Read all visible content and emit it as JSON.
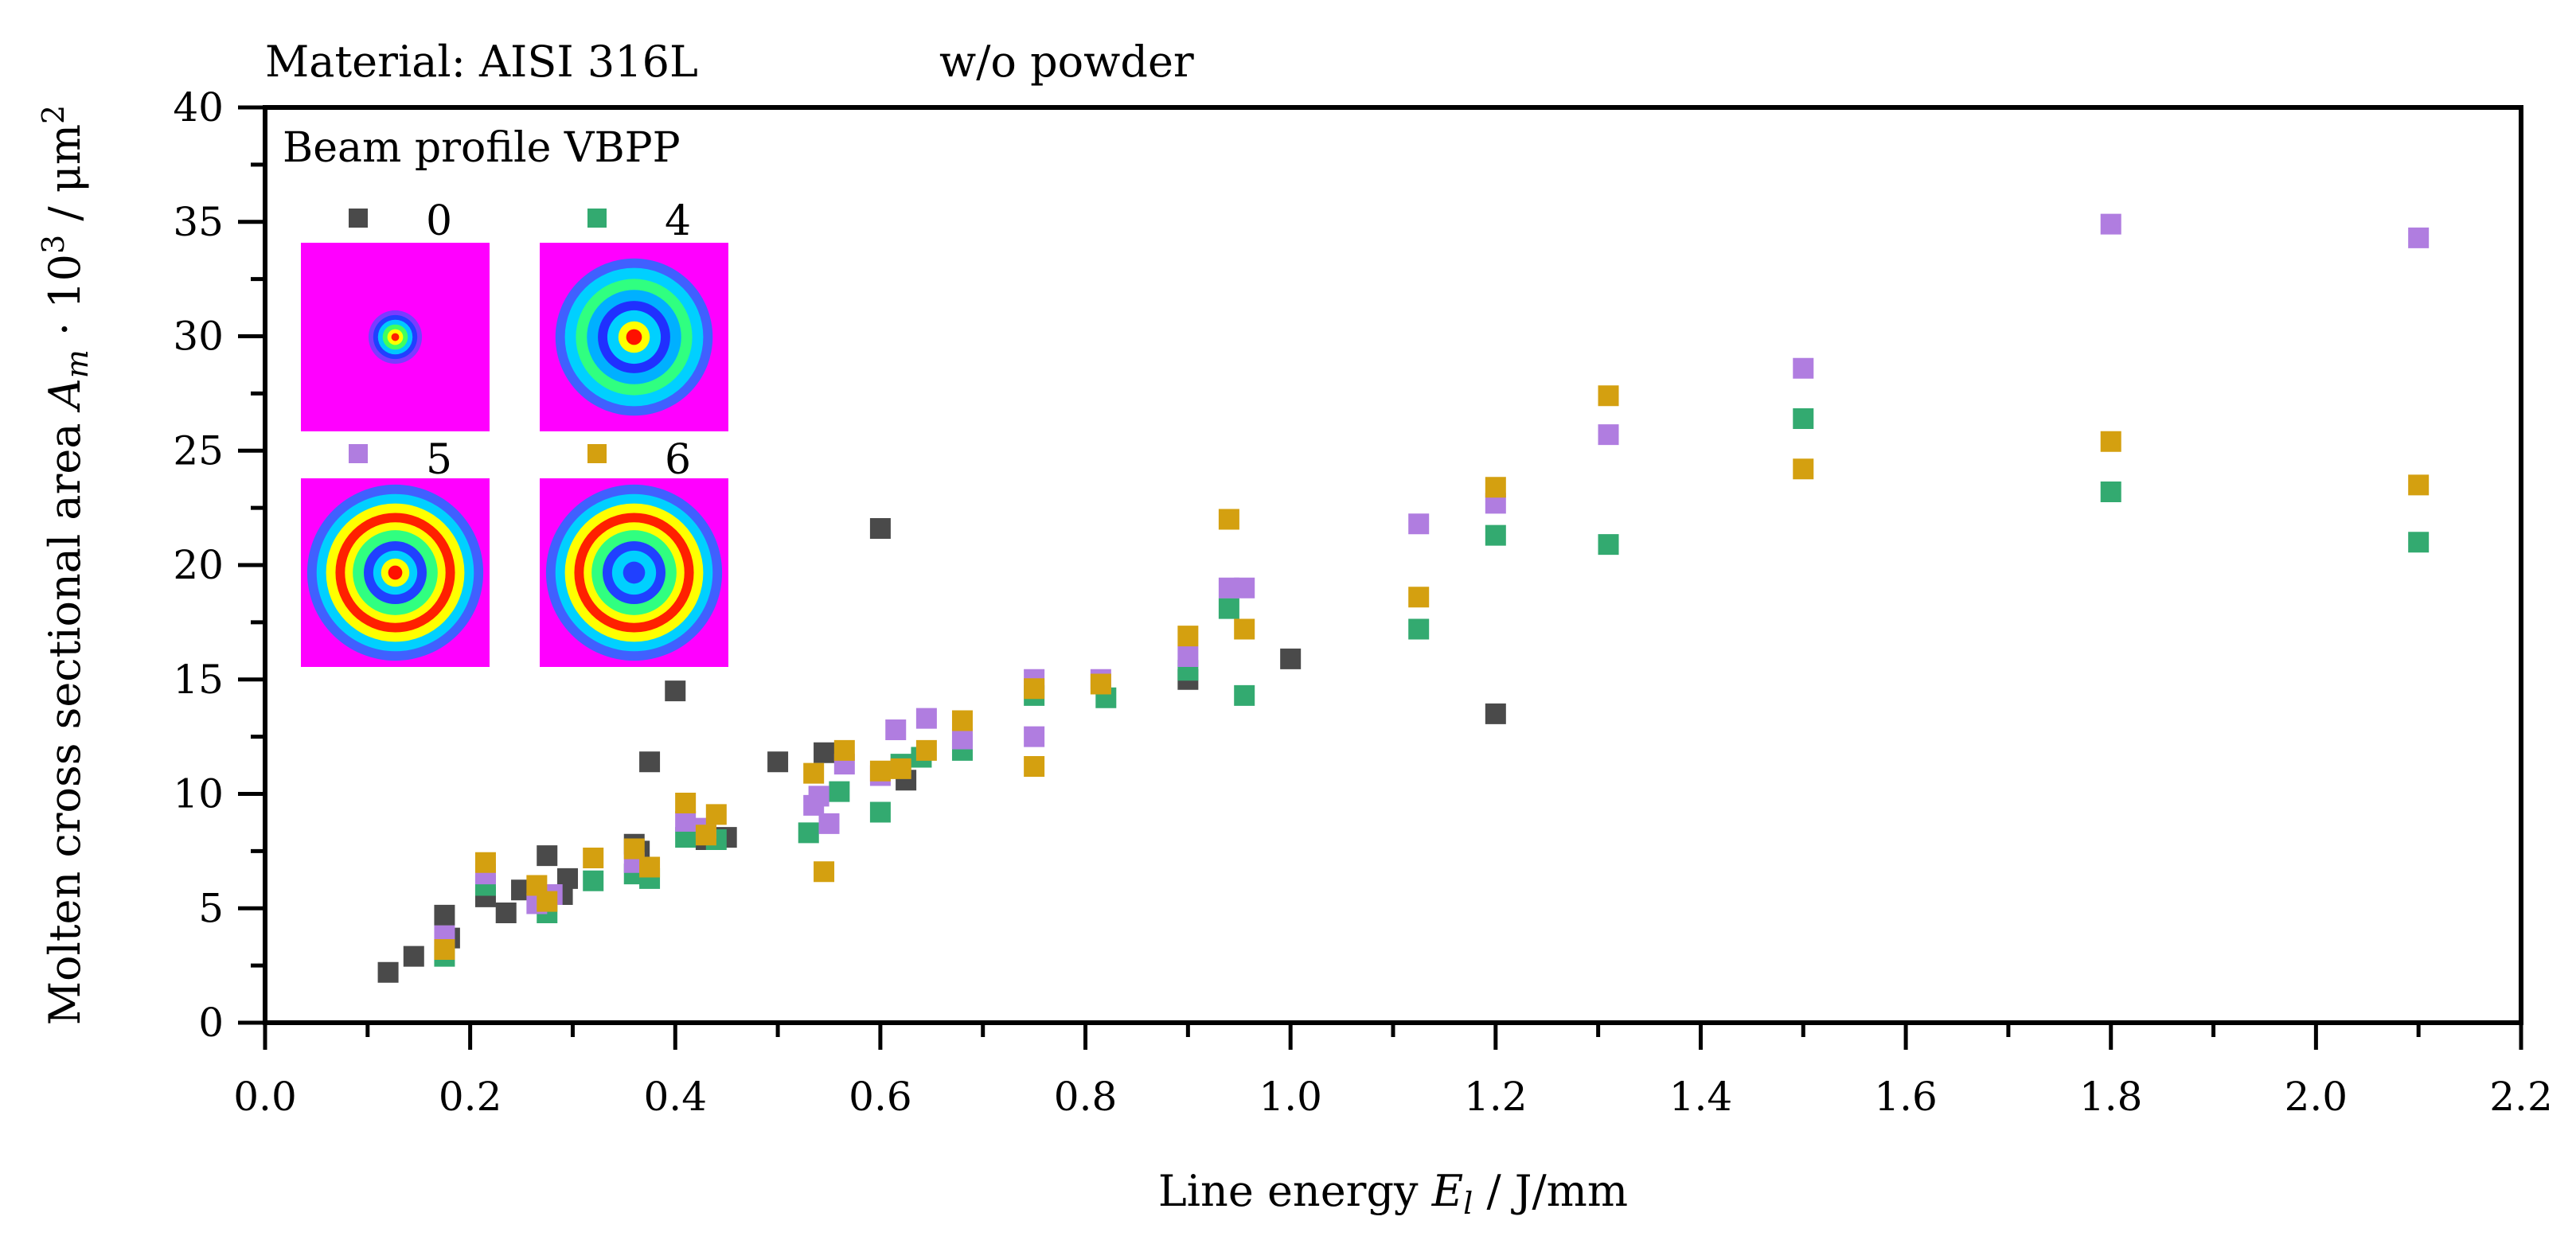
{
  "chart_data": {
    "type": "scatter",
    "header_left": "Material: AISI 316L",
    "header_right": "w/o powder",
    "xlabel_prefix": "Line energy ",
    "xlabel_var": "E",
    "xlabel_sub": "l",
    "xlabel_suffix": " / J/mm",
    "ylabel_prefix": "Molten cross sectional area ",
    "ylabel_var": "A",
    "ylabel_sub": "m",
    "ylabel_mid": " · 10",
    "ylabel_sup": "3",
    "ylabel_unit": " / μm",
    "ylabel_unit_sup": "2",
    "xlim": [
      0.0,
      2.2
    ],
    "ylim": [
      0,
      40
    ],
    "xticks": [
      "0.0",
      "0.2",
      "0.4",
      "0.6",
      "0.8",
      "1.0",
      "1.2",
      "1.4",
      "1.6",
      "1.8",
      "2.0",
      "2.2"
    ],
    "yticks": [
      "0",
      "5",
      "10",
      "15",
      "20",
      "25",
      "30",
      "35",
      "40"
    ],
    "legend_title": "Beam profile VBPP",
    "series": [
      {
        "name": "0",
        "color": "#4a4a4a",
        "x": [
          0.12,
          0.145,
          0.175,
          0.18,
          0.215,
          0.235,
          0.25,
          0.275,
          0.29,
          0.295,
          0.36,
          0.365,
          0.375,
          0.4,
          0.43,
          0.45,
          0.5,
          0.545,
          0.6,
          0.625,
          0.9,
          1.0,
          1.2
        ],
        "y": [
          2.2,
          2.9,
          4.7,
          3.7,
          5.5,
          4.8,
          5.8,
          7.3,
          5.6,
          6.3,
          7.8,
          7.5,
          11.4,
          14.5,
          8.0,
          8.1,
          11.4,
          11.8,
          21.6,
          10.6,
          15.0,
          15.9,
          13.5
        ]
      },
      {
        "name": "4",
        "color": "#33aa70",
        "x": [
          0.175,
          0.215,
          0.275,
          0.32,
          0.36,
          0.375,
          0.41,
          0.44,
          0.53,
          0.56,
          0.6,
          0.62,
          0.64,
          0.68,
          0.75,
          0.82,
          0.9,
          0.94,
          0.955,
          1.125,
          1.2,
          1.31,
          1.5,
          1.8,
          2.1
        ],
        "y": [
          2.9,
          6.0,
          4.8,
          6.2,
          6.5,
          6.3,
          8.1,
          8.0,
          8.3,
          10.1,
          9.2,
          11.3,
          11.6,
          11.9,
          14.3,
          14.2,
          15.4,
          18.1,
          14.3,
          17.2,
          21.3,
          20.9,
          26.4,
          23.2,
          21.0
        ]
      },
      {
        "name": "5",
        "color": "#b07de0",
        "x": [
          0.175,
          0.215,
          0.265,
          0.28,
          0.36,
          0.41,
          0.43,
          0.535,
          0.54,
          0.55,
          0.565,
          0.6,
          0.615,
          0.645,
          0.68,
          0.75,
          0.75,
          0.815,
          0.9,
          0.94,
          0.955,
          1.125,
          1.2,
          1.31,
          1.5,
          1.8,
          2.1
        ],
        "y": [
          3.8,
          6.5,
          5.2,
          5.6,
          7.0,
          8.8,
          8.5,
          9.5,
          9.9,
          8.7,
          11.3,
          10.8,
          12.8,
          13.3,
          12.4,
          15.0,
          12.5,
          15.0,
          16.0,
          19.0,
          19.0,
          21.8,
          22.7,
          25.7,
          28.6,
          34.9,
          34.3
        ]
      },
      {
        "name": "6",
        "color": "#d4a010",
        "x": [
          0.175,
          0.215,
          0.265,
          0.275,
          0.32,
          0.36,
          0.375,
          0.41,
          0.43,
          0.44,
          0.535,
          0.545,
          0.565,
          0.6,
          0.62,
          0.645,
          0.68,
          0.75,
          0.75,
          0.815,
          0.9,
          0.94,
          0.955,
          1.125,
          1.2,
          1.31,
          1.5,
          1.8,
          2.1
        ],
        "y": [
          3.2,
          7.0,
          6.0,
          5.3,
          7.2,
          7.6,
          6.8,
          9.6,
          8.2,
          9.1,
          10.9,
          6.6,
          11.9,
          11.0,
          11.1,
          11.9,
          13.2,
          14.6,
          11.2,
          14.8,
          16.9,
          22.0,
          17.2,
          18.6,
          23.4,
          27.4,
          24.2,
          25.4,
          23.5
        ]
      }
    ],
    "legend_profiles": [
      {
        "series": "0",
        "rings": [
          "#ff00ff",
          "#7a3cff",
          "#2040ff",
          "#00c8ff",
          "#40ff60",
          "#ffff00",
          "#ff2000"
        ],
        "radii": [
          0,
          0.17,
          0.14,
          0.11,
          0.08,
          0.05,
          0.025
        ]
      },
      {
        "series": "4",
        "rings": [
          "#ff00ff",
          "#4060ff",
          "#00d0ff",
          "#30ff80",
          "#00b0ff",
          "#2030ff",
          "#00d0ff",
          "#ffff00",
          "#ff1000"
        ],
        "radii": [
          0,
          0.5,
          0.44,
          0.37,
          0.3,
          0.23,
          0.17,
          0.1,
          0.05
        ]
      },
      {
        "series": "5",
        "rings": [
          "#ff00ff",
          "#4060ff",
          "#00d0ff",
          "#ffff00",
          "#ff2000",
          "#ffff00",
          "#30ff80",
          "#2040ff",
          "#00d0ff",
          "#ffff00",
          "#ff1000"
        ],
        "radii": [
          0,
          0.56,
          0.5,
          0.44,
          0.38,
          0.32,
          0.27,
          0.2,
          0.14,
          0.09,
          0.045
        ]
      },
      {
        "series": "6",
        "rings": [
          "#ff00ff",
          "#4060ff",
          "#00d0ff",
          "#ffff00",
          "#ff2000",
          "#ffff00",
          "#30ff80",
          "#2040ff",
          "#00d0ff",
          "#2040ff"
        ],
        "radii": [
          0,
          0.56,
          0.5,
          0.44,
          0.38,
          0.32,
          0.27,
          0.2,
          0.14,
          0.07
        ]
      }
    ]
  }
}
